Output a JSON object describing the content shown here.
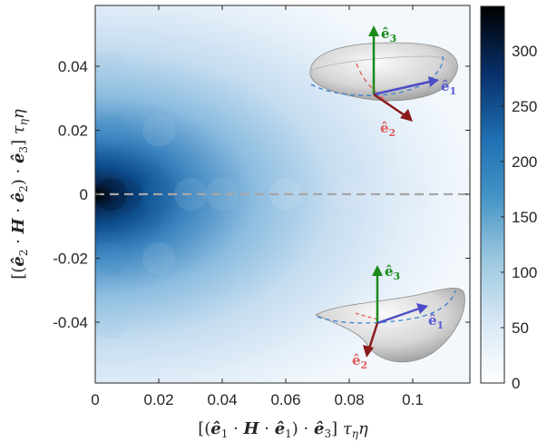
{
  "chart_data": {
    "type": "heatmap",
    "xlabel": "[(ê₁ · H · ê₁) · ê₃] τηη",
    "ylabel": "[(ê₂ · H · ê₂) · ê₃] τηη",
    "xlim": [
      0,
      0.118
    ],
    "ylim": [
      -0.059,
      0.059
    ],
    "x_ticks": [
      "0",
      "0.02",
      "0.04",
      "0.06",
      "0.08",
      "0.1"
    ],
    "x_tick_values": [
      0,
      0.02,
      0.04,
      0.06,
      0.08,
      0.1
    ],
    "y_ticks": [
      "0.04",
      "0.02",
      "0",
      "-0.02",
      "-0.04"
    ],
    "y_tick_values": [
      0.04,
      0.02,
      0,
      -0.02,
      -0.04
    ],
    "colorbar": {
      "ticks": [
        "300",
        "250",
        "200",
        "150",
        "100",
        "50",
        "0"
      ],
      "tick_values": [
        300,
        250,
        200,
        150,
        100,
        50,
        0
      ],
      "range": [
        0,
        340
      ],
      "colormap": [
        "#ffffff",
        "#dbe9f6",
        "#9ecae1",
        "#4292c6",
        "#1f6fb2",
        "#08306b",
        "#000000"
      ]
    },
    "density": {
      "description_free_model": "counts peak at x≈0.005, y≈0, decaying with x and spreading in y",
      "peak_value": 340,
      "peak_x": 0.004,
      "peak_y": 0.0,
      "points": [
        {
          "x": 0.005,
          "y": 0.0,
          "value": 335
        },
        {
          "x": 0.01,
          "y": 0.0,
          "value": 260
        },
        {
          "x": 0.02,
          "y": 0.0,
          "value": 175
        },
        {
          "x": 0.03,
          "y": 0.0,
          "value": 110
        },
        {
          "x": 0.04,
          "y": 0.0,
          "value": 75
        },
        {
          "x": 0.06,
          "y": 0.0,
          "value": 40
        },
        {
          "x": 0.08,
          "y": 0.0,
          "value": 20
        },
        {
          "x": 0.1,
          "y": 0.0,
          "value": 10
        },
        {
          "x": 0.005,
          "y": 0.02,
          "value": 150
        },
        {
          "x": 0.005,
          "y": -0.02,
          "value": 140
        },
        {
          "x": 0.02,
          "y": 0.02,
          "value": 110
        },
        {
          "x": 0.02,
          "y": -0.02,
          "value": 105
        },
        {
          "x": 0.005,
          "y": 0.04,
          "value": 70
        },
        {
          "x": 0.005,
          "y": -0.04,
          "value": 60
        }
      ]
    },
    "reference_line": {
      "y": 0,
      "style": "dashed",
      "color": "#a6a6a6"
    },
    "insets": [
      {
        "position": "upper-right",
        "labels": [
          "ê₃",
          "ê₁",
          "ê₂"
        ],
        "colors": [
          "#1a8a1a",
          "#5a5ad6",
          "#e05a5a"
        ]
      },
      {
        "position": "lower-right",
        "labels": [
          "ê₃",
          "ê₁",
          "ê₂"
        ],
        "colors": [
          "#1a8a1a",
          "#5a5ad6",
          "#e05a5a"
        ]
      }
    ]
  }
}
